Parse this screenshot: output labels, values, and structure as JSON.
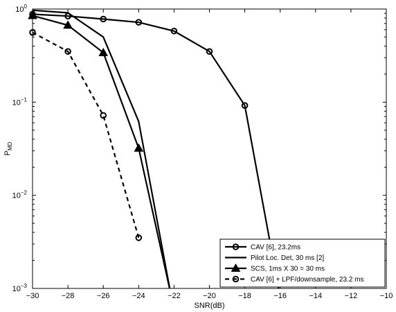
{
  "chart_data": {
    "type": "line",
    "title": "",
    "xlabel": "SNR(dB)",
    "ylabel": "P",
    "ylabel_sub": "MD",
    "xlim": [
      -30,
      -10
    ],
    "ylim": [
      0.001,
      1
    ],
    "yscale": "log",
    "grid": false,
    "legend_position": "bottom-right",
    "x_ticks": [
      -30,
      -28,
      -26,
      -24,
      -22,
      -20,
      -18,
      -16,
      -14,
      -12,
      -10
    ],
    "x_tick_labels": [
      "−30",
      "−28",
      "−26",
      "−24",
      "−22",
      "−20",
      "−18",
      "−16",
      "−14",
      "−12",
      "−10"
    ],
    "y_ticks": [
      {
        "value": 1,
        "base": "10",
        "exp": "0"
      },
      {
        "value": 0.1,
        "base": "10",
        "exp": "−1"
      },
      {
        "value": 0.01,
        "base": "10",
        "exp": "−2"
      },
      {
        "value": 0.001,
        "base": "10",
        "exp": "−3"
      }
    ],
    "series": [
      {
        "name": "CAV [6], 23.2ms",
        "marker": "circle",
        "dash": "solid",
        "x": [
          -30,
          -28,
          -26,
          -24,
          -22,
          -20,
          -18,
          -16
        ],
        "y": [
          0.88,
          0.84,
          0.78,
          0.72,
          0.58,
          0.35,
          0.092,
          0.0008
        ]
      },
      {
        "name": "Pilot Loc. Det, 30 ms [2]",
        "marker": "none",
        "dash": "solid",
        "x": [
          -30,
          -28,
          -26,
          -24,
          -22.2
        ],
        "y": [
          0.97,
          0.91,
          0.5,
          0.062,
          0.0009
        ]
      },
      {
        "name": "SCS, 1ms X 30 = 30 ms",
        "marker": "triangle",
        "dash": "solid",
        "x": [
          -30,
          -28,
          -26,
          -24,
          -22.2
        ],
        "y": [
          0.85,
          0.67,
          0.34,
          0.032,
          0.0009
        ]
      },
      {
        "name": "CAV [6] + LPF/downsample, 23.2 ms",
        "marker": "circle",
        "dash": "dashed",
        "x": [
          -30,
          -28,
          -26,
          -24
        ],
        "y": [
          0.56,
          0.35,
          0.072,
          0.0035
        ]
      }
    ]
  }
}
